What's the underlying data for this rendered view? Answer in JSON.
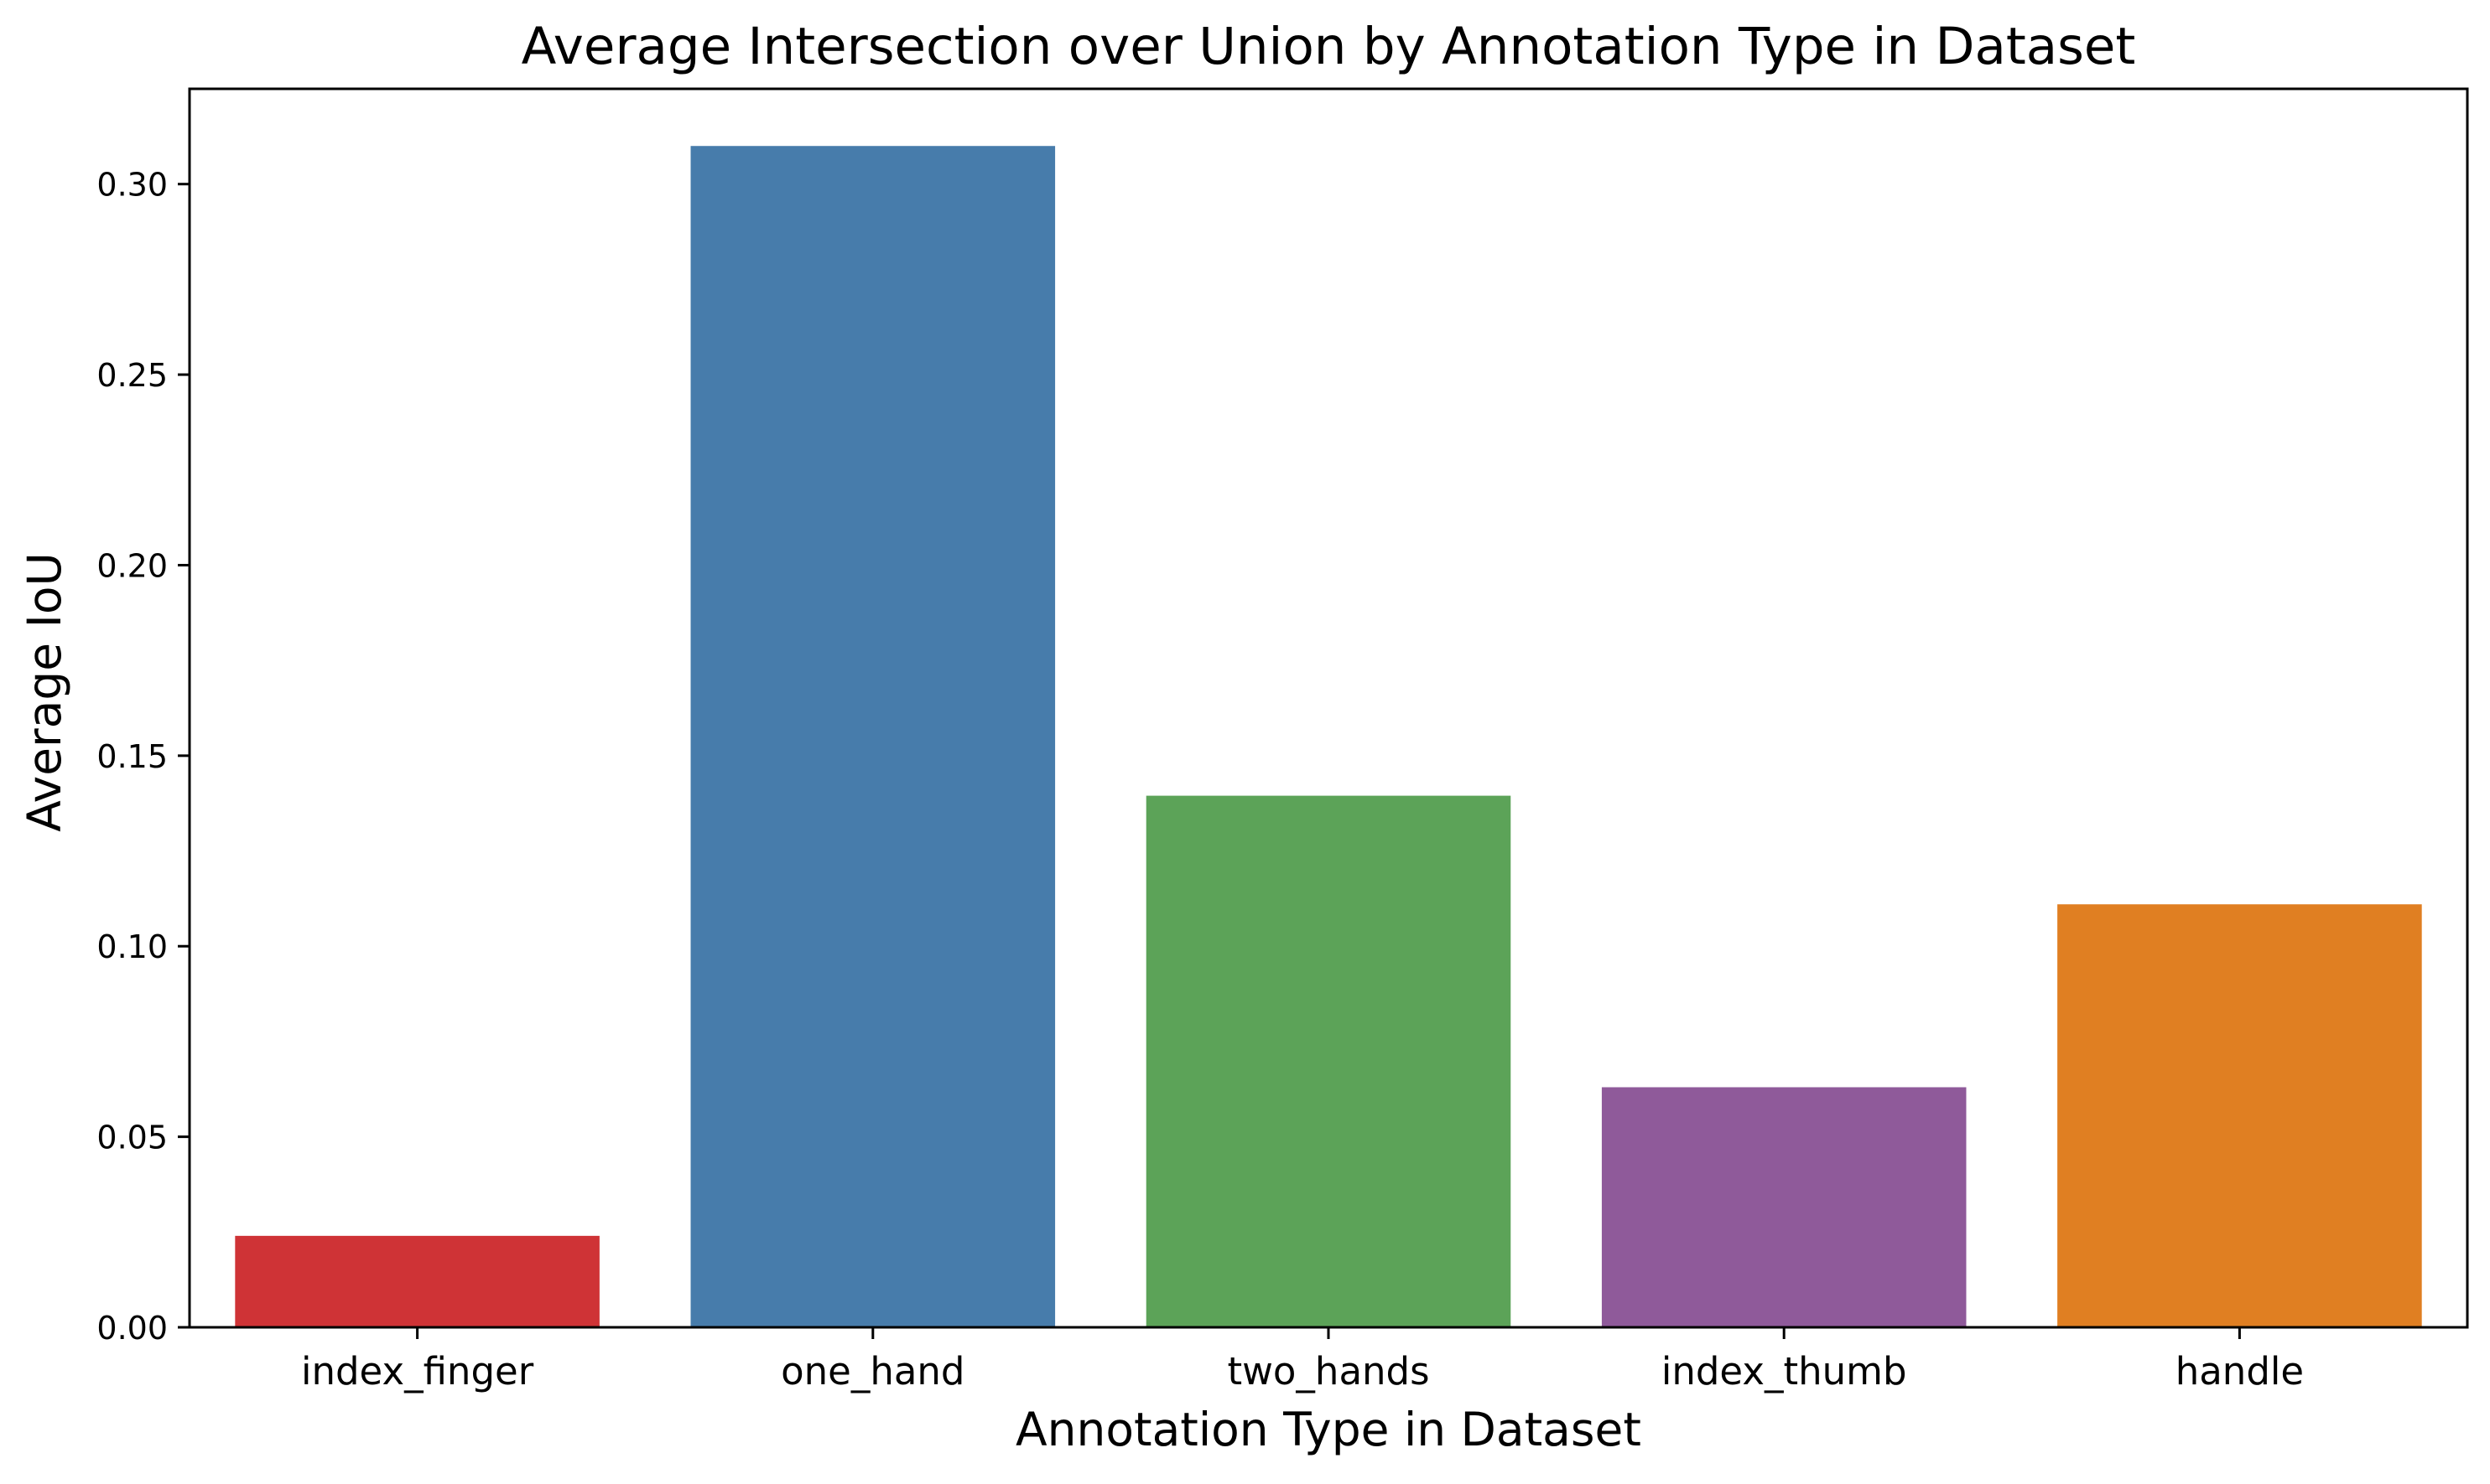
{
  "chart_data": {
    "type": "bar",
    "title": "Average Intersection over Union by Annotation Type in Dataset",
    "xlabel": "Annotation Type in Dataset",
    "ylabel": "Average IoU",
    "categories": [
      "index_finger",
      "one_hand",
      "two_hands",
      "index_thumb",
      "handle"
    ],
    "values": [
      0.024,
      0.31,
      0.1395,
      0.063,
      0.111
    ],
    "colors": [
      "#cf3336",
      "#477cab",
      "#5ca358",
      "#8f5a9a",
      "#e07f22"
    ],
    "ylim": [
      0,
      0.325
    ],
    "yticks": [
      0.0,
      0.05,
      0.1,
      0.15,
      0.2,
      0.25,
      0.3
    ],
    "ytick_labels": [
      "0.00",
      "0.05",
      "0.10",
      "0.15",
      "0.20",
      "0.25",
      "0.30"
    ],
    "grid": false,
    "legend": "none"
  }
}
